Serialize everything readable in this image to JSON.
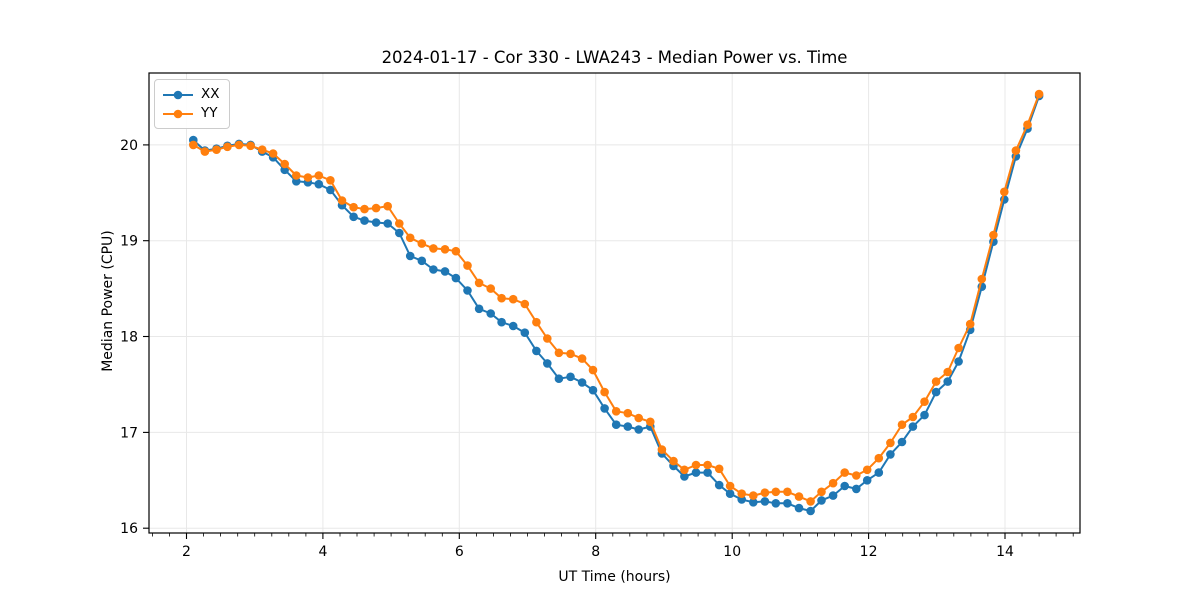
{
  "figure": {
    "background": "#ffffff",
    "spine_color": "#000000",
    "tick_color": "#000000"
  },
  "chart_data": {
    "type": "line",
    "title": "2024-01-17 - Cor 330 - LWA243 - Median Power vs. Time",
    "xlabel": "UT Time (hours)",
    "ylabel": "Median Power (CPU)",
    "xlim": [
      1.45,
      15.1
    ],
    "ylim": [
      15.95,
      20.75
    ],
    "x_ticks": [
      2,
      4,
      6,
      8,
      10,
      12,
      14
    ],
    "y_ticks": [
      16,
      17,
      18,
      19,
      20
    ],
    "x_minor_step": 0.25,
    "grid": true,
    "grid_color": "#e8e8e8",
    "legend_position": "upper-left",
    "marker": "circle",
    "marker_radius": 4.3,
    "line_width": 2,
    "x": [
      2.1,
      2.27,
      2.44,
      2.6,
      2.77,
      2.94,
      3.11,
      3.27,
      3.44,
      3.61,
      3.78,
      3.94,
      4.11,
      4.28,
      4.45,
      4.61,
      4.78,
      4.95,
      5.12,
      5.28,
      5.45,
      5.62,
      5.79,
      5.95,
      6.12,
      6.29,
      6.46,
      6.62,
      6.79,
      6.96,
      7.13,
      7.29,
      7.46,
      7.63,
      7.8,
      7.96,
      8.13,
      8.3,
      8.47,
      8.63,
      8.8,
      8.97,
      9.14,
      9.3,
      9.47,
      9.64,
      9.81,
      9.97,
      10.14,
      10.31,
      10.48,
      10.64,
      10.81,
      10.98,
      11.15,
      11.31,
      11.48,
      11.65,
      11.82,
      11.98,
      12.15,
      12.32,
      12.49,
      12.65,
      12.82,
      12.99,
      13.16,
      13.32,
      13.49,
      13.66,
      13.83,
      13.99,
      14.16,
      14.33,
      14.5
    ],
    "series": [
      {
        "name": "XX",
        "color": "#1f77b4",
        "values": [
          20.05,
          19.94,
          19.96,
          19.99,
          20.01,
          20.0,
          19.93,
          19.87,
          19.74,
          19.62,
          19.61,
          19.59,
          19.53,
          19.37,
          19.25,
          19.21,
          19.19,
          19.18,
          19.08,
          18.84,
          18.79,
          18.7,
          18.68,
          18.61,
          18.48,
          18.29,
          18.24,
          18.15,
          18.11,
          18.04,
          17.85,
          17.72,
          17.56,
          17.58,
          17.52,
          17.44,
          17.25,
          17.08,
          17.06,
          17.03,
          17.06,
          16.78,
          16.65,
          16.54,
          16.58,
          16.58,
          16.45,
          16.36,
          16.3,
          16.27,
          16.28,
          16.26,
          16.26,
          16.21,
          16.18,
          16.29,
          16.34,
          16.44,
          16.41,
          16.5,
          16.58,
          16.77,
          16.9,
          17.06,
          17.18,
          17.42,
          17.53,
          17.74,
          18.07,
          18.52,
          18.99,
          19.43,
          19.88,
          20.17,
          20.51
        ]
      },
      {
        "name": "YY",
        "color": "#ff7f0e",
        "values": [
          20.0,
          19.93,
          19.95,
          19.98,
          20.0,
          19.99,
          19.95,
          19.91,
          19.8,
          19.68,
          19.66,
          19.68,
          19.63,
          19.42,
          19.35,
          19.33,
          19.34,
          19.36,
          19.18,
          19.03,
          18.97,
          18.92,
          18.91,
          18.89,
          18.74,
          18.56,
          18.5,
          18.4,
          18.39,
          18.34,
          18.15,
          17.98,
          17.83,
          17.82,
          17.77,
          17.65,
          17.42,
          17.22,
          17.2,
          17.15,
          17.11,
          16.82,
          16.7,
          16.61,
          16.66,
          16.66,
          16.62,
          16.44,
          16.36,
          16.34,
          16.37,
          16.38,
          16.38,
          16.33,
          16.28,
          16.38,
          16.47,
          16.58,
          16.55,
          16.61,
          16.73,
          16.89,
          17.08,
          17.16,
          17.32,
          17.53,
          17.63,
          17.88,
          18.13,
          18.6,
          19.06,
          19.51,
          19.94,
          20.21,
          20.53
        ]
      }
    ]
  }
}
